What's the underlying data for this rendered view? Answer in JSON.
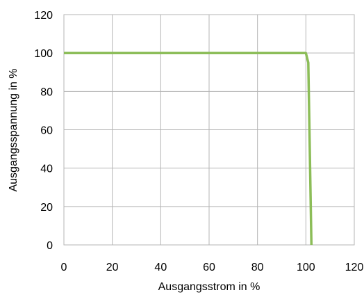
{
  "chart_data": {
    "type": "line",
    "title": "",
    "xlabel": "Ausgangsstrom in %",
    "ylabel": "Ausgangsspannung in %",
    "xlim": [
      0,
      120
    ],
    "ylim": [
      0,
      120
    ],
    "xticks": [
      0,
      20,
      40,
      60,
      80,
      100,
      120
    ],
    "yticks": [
      0,
      20,
      40,
      60,
      80,
      100,
      120
    ],
    "grid": true,
    "series": [
      {
        "color": "#8cbd58",
        "x": [
          0,
          100,
          101,
          102.3
        ],
        "y": [
          100,
          100,
          95,
          0
        ]
      }
    ]
  }
}
